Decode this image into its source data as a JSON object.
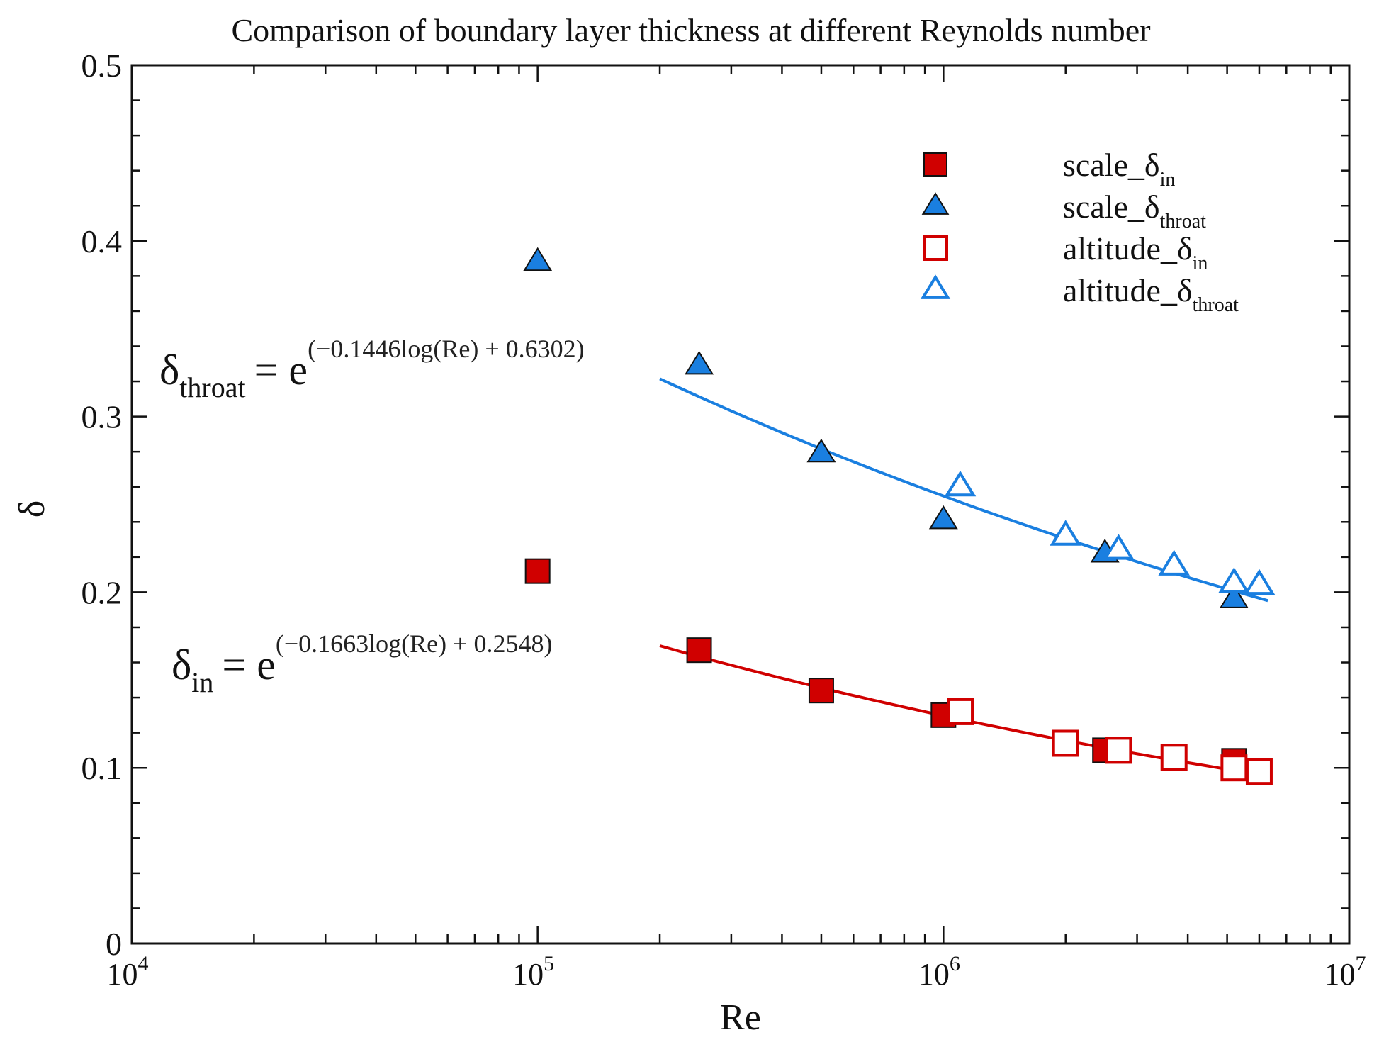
{
  "chart_data": {
    "type": "scatter",
    "title": "Comparison of boundary layer thickness at different Reynolds number",
    "xlabel": "Re",
    "ylabel": "δ",
    "xscale": "log",
    "xlim": [
      10000,
      10000000
    ],
    "ylim": [
      0,
      0.5
    ],
    "x_ticks": [
      {
        "base": "10",
        "exp": "4",
        "value": 10000
      },
      {
        "base": "10",
        "exp": "5",
        "value": 100000
      },
      {
        "base": "10",
        "exp": "6",
        "value": 1000000
      },
      {
        "base": "10",
        "exp": "7",
        "value": 10000000
      }
    ],
    "y_ticks": [
      {
        "label": "0",
        "value": 0
      },
      {
        "label": "0.1",
        "value": 0.1
      },
      {
        "label": "0.2",
        "value": 0.2
      },
      {
        "label": "0.3",
        "value": 0.3
      },
      {
        "label": "0.4",
        "value": 0.4
      },
      {
        "label": "0.5",
        "value": 0.5
      }
    ],
    "legend_position": "top-right",
    "series": [
      {
        "name": "scale_δin",
        "base": "scale_δ",
        "sub": "in",
        "marker": "square",
        "filled": true,
        "color": "#d00000",
        "points": [
          [
            100000,
            0.212
          ],
          [
            250000,
            0.167
          ],
          [
            500000,
            0.144
          ],
          [
            1000000,
            0.13
          ],
          [
            2500000,
            0.11
          ],
          [
            5200000,
            0.104
          ]
        ]
      },
      {
        "name": "scale_δthroat",
        "base": "scale_δ",
        "sub": "throat",
        "marker": "triangle",
        "filled": true,
        "color": "#1a7fe0",
        "points": [
          [
            100000,
            0.388
          ],
          [
            250000,
            0.329
          ],
          [
            500000,
            0.279
          ],
          [
            1000000,
            0.241
          ],
          [
            2500000,
            0.222
          ],
          [
            5200000,
            0.196
          ]
        ]
      },
      {
        "name": "altitude_δin",
        "base": "altitude_δ",
        "sub": "in",
        "marker": "square",
        "filled": false,
        "color": "#d00000",
        "points": [
          [
            1100000,
            0.132
          ],
          [
            2000000,
            0.114
          ],
          [
            2700000,
            0.11
          ],
          [
            3700000,
            0.106
          ],
          [
            5200000,
            0.1
          ],
          [
            6000000,
            0.098
          ]
        ]
      },
      {
        "name": "altitude_δthroat",
        "base": "altitude_δ",
        "sub": "throat",
        "marker": "triangle",
        "filled": false,
        "color": "#1a7fe0",
        "points": [
          [
            1100000,
            0.26
          ],
          [
            2000000,
            0.232
          ],
          [
            2700000,
            0.224
          ],
          [
            3700000,
            0.215
          ],
          [
            5200000,
            0.205
          ],
          [
            6000000,
            0.204
          ]
        ]
      }
    ],
    "fits": [
      {
        "name": "δthroat fit",
        "color": "#1a7fe0",
        "a": -0.1446,
        "b": 0.6302,
        "x_range": [
          200000,
          6300000
        ],
        "eq_lhs_base": "δ",
        "eq_lhs_sub": "throat",
        "eq_rhs": "= e",
        "eq_exponent": "(−0.1446log(Re) + 0.6302)"
      },
      {
        "name": "δin fit",
        "color": "#d00000",
        "a": -0.1663,
        "b": 0.2548,
        "x_range": [
          200000,
          6300000
        ],
        "eq_lhs_base": "δ",
        "eq_lhs_sub": "in",
        "eq_rhs": "= e",
        "eq_exponent": "(−0.1663log(Re) + 0.2548)"
      }
    ]
  }
}
